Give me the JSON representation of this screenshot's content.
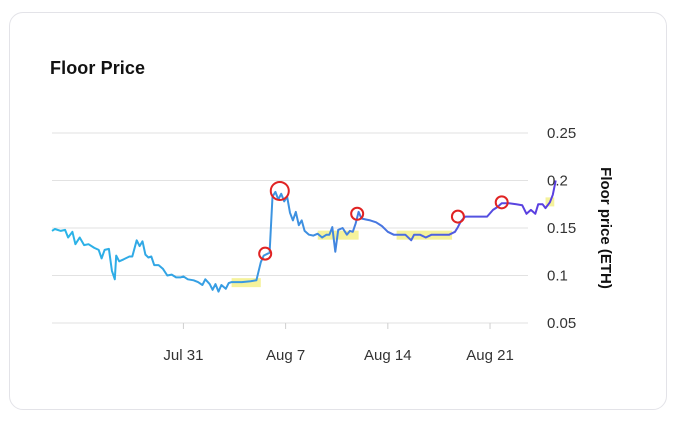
{
  "card": {
    "title": "Floor Price"
  },
  "chart_data": {
    "type": "line",
    "title": "Floor Price",
    "xlabel": "",
    "ylabel": "Floor price (ETH)",
    "ylim": [
      0.05,
      0.25
    ],
    "y_ticks": [
      0.25,
      0.2,
      0.15,
      0.1,
      0.05
    ],
    "y_tick_labels": [
      "0.25",
      "0.2",
      "0.15",
      "0.1",
      "0.05"
    ],
    "x_tick_labels": [
      "Jul 31",
      "Aug 7",
      "Aug 14",
      "Aug 21"
    ],
    "x_tick_days": [
      7.0,
      14.0,
      21.0,
      28.0
    ],
    "xlim_days": [
      -2.0,
      30.6
    ],
    "grid": true,
    "legend": "none",
    "colors": {
      "line_start": "#29b6e8",
      "line_mid": "#3f8ee0",
      "line_end": "#5a3fe0",
      "highlight": "#f3f08a",
      "marker": "#e02323"
    },
    "series": [
      {
        "values": [
          [
            -2.0,
            0.147
          ],
          [
            -1.8,
            0.149
          ],
          [
            -1.4,
            0.147
          ],
          [
            -1.1,
            0.148
          ],
          [
            -0.9,
            0.14
          ],
          [
            -0.6,
            0.146
          ],
          [
            -0.4,
            0.133
          ],
          [
            -0.1,
            0.14
          ],
          [
            0.2,
            0.132
          ],
          [
            0.5,
            0.133
          ],
          [
            0.9,
            0.129
          ],
          [
            1.2,
            0.127
          ],
          [
            1.4,
            0.118
          ],
          [
            1.6,
            0.127
          ],
          [
            1.9,
            0.128
          ],
          [
            2.1,
            0.105
          ],
          [
            2.3,
            0.096
          ],
          [
            2.4,
            0.121
          ],
          [
            2.6,
            0.115
          ],
          [
            2.9,
            0.117
          ],
          [
            3.3,
            0.12
          ],
          [
            3.5,
            0.12
          ],
          [
            3.8,
            0.137
          ],
          [
            4.0,
            0.131
          ],
          [
            4.2,
            0.136
          ],
          [
            4.4,
            0.122
          ],
          [
            4.6,
            0.119
          ],
          [
            4.8,
            0.12
          ],
          [
            5.0,
            0.111
          ],
          [
            5.3,
            0.111
          ],
          [
            5.6,
            0.107
          ],
          [
            5.9,
            0.1
          ],
          [
            6.2,
            0.101
          ],
          [
            6.5,
            0.098
          ],
          [
            6.8,
            0.098
          ],
          [
            7.0,
            0.099
          ],
          [
            7.3,
            0.096
          ],
          [
            7.7,
            0.095
          ],
          [
            8.0,
            0.093
          ],
          [
            8.3,
            0.09
          ],
          [
            8.5,
            0.096
          ],
          [
            8.8,
            0.091
          ],
          [
            9.0,
            0.085
          ],
          [
            9.2,
            0.091
          ],
          [
            9.4,
            0.083
          ],
          [
            9.6,
            0.09
          ],
          [
            9.9,
            0.086
          ],
          [
            10.1,
            0.092
          ],
          [
            10.3,
            0.093
          ],
          [
            10.7,
            0.093
          ],
          [
            11.0,
            0.093
          ],
          [
            11.6,
            0.094
          ],
          [
            12.0,
            0.095
          ],
          [
            12.3,
            0.114
          ],
          [
            12.5,
            0.121
          ],
          [
            12.9,
            0.124
          ],
          [
            13.1,
            0.183
          ],
          [
            13.3,
            0.188
          ],
          [
            13.5,
            0.18
          ],
          [
            13.7,
            0.186
          ],
          [
            13.9,
            0.178
          ],
          [
            14.1,
            0.183
          ],
          [
            14.3,
            0.166
          ],
          [
            14.5,
            0.158
          ],
          [
            14.7,
            0.167
          ],
          [
            14.9,
            0.153
          ],
          [
            15.1,
            0.158
          ],
          [
            15.3,
            0.147
          ],
          [
            15.6,
            0.143
          ],
          [
            15.9,
            0.142
          ],
          [
            16.2,
            0.144
          ],
          [
            16.5,
            0.14
          ],
          [
            16.8,
            0.143
          ],
          [
            17.0,
            0.143
          ],
          [
            17.2,
            0.151
          ],
          [
            17.4,
            0.125
          ],
          [
            17.6,
            0.148
          ],
          [
            17.9,
            0.15
          ],
          [
            18.2,
            0.143
          ],
          [
            18.4,
            0.147
          ],
          [
            18.6,
            0.146
          ],
          [
            18.8,
            0.155
          ],
          [
            19.0,
            0.167
          ],
          [
            19.2,
            0.16
          ],
          [
            19.5,
            0.159
          ],
          [
            19.8,
            0.158
          ],
          [
            20.2,
            0.156
          ],
          [
            20.6,
            0.152
          ],
          [
            21.0,
            0.146
          ],
          [
            21.4,
            0.143
          ],
          [
            21.8,
            0.143
          ],
          [
            22.2,
            0.143
          ],
          [
            22.6,
            0.137
          ],
          [
            22.8,
            0.143
          ],
          [
            23.2,
            0.143
          ],
          [
            23.6,
            0.14
          ],
          [
            24.0,
            0.143
          ],
          [
            24.6,
            0.143
          ],
          [
            25.2,
            0.143
          ],
          [
            25.6,
            0.146
          ],
          [
            25.8,
            0.151
          ],
          [
            26.0,
            0.157
          ],
          [
            26.3,
            0.162
          ],
          [
            26.8,
            0.162
          ],
          [
            27.3,
            0.162
          ],
          [
            27.8,
            0.162
          ],
          [
            28.2,
            0.169
          ],
          [
            28.5,
            0.172
          ],
          [
            28.8,
            0.176
          ],
          [
            29.3,
            0.176
          ],
          [
            29.8,
            0.175
          ],
          [
            30.2,
            0.174
          ],
          [
            30.5,
            0.165
          ],
          [
            30.8,
            0.169
          ],
          [
            31.1,
            0.165
          ],
          [
            31.3,
            0.175
          ],
          [
            31.6,
            0.175
          ],
          [
            31.8,
            0.171
          ],
          [
            32.1,
            0.177
          ],
          [
            32.3,
            0.185
          ],
          [
            32.5,
            0.2
          ]
        ]
      }
    ],
    "highlight_ranges_days": [
      [
        10.3,
        12.3
      ],
      [
        16.2,
        19.0
      ],
      [
        21.6,
        25.4
      ],
      [
        31.8,
        32.4
      ]
    ],
    "highlight_levels": [
      0.093,
      0.143,
      0.143,
      0.178
    ],
    "markers_days": [
      [
        12.6,
        0.123
      ],
      [
        13.6,
        0.189
      ],
      [
        18.9,
        0.165
      ],
      [
        25.8,
        0.162
      ],
      [
        28.8,
        0.177
      ]
    ]
  }
}
